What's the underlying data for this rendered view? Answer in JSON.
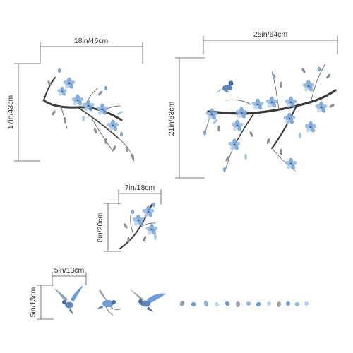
{
  "dimensions": {
    "large_left": {
      "width": "18in/46cm",
      "height": "17in/43cm"
    },
    "large_right": {
      "width": "25in/64cm",
      "height": "21in/53cm"
    },
    "small_branch": {
      "width": "7in/18cm",
      "height": "8in/20cm"
    },
    "birds": {
      "width": "5in/13cm",
      "height": "5in/13cm"
    }
  },
  "colors": {
    "petal_blue": "#6f9ed6",
    "petal_light": "#b9d2ee",
    "petal_grey": "#9aa3ad",
    "branch": "#3a3a3a",
    "dimension_line": "#555555"
  }
}
